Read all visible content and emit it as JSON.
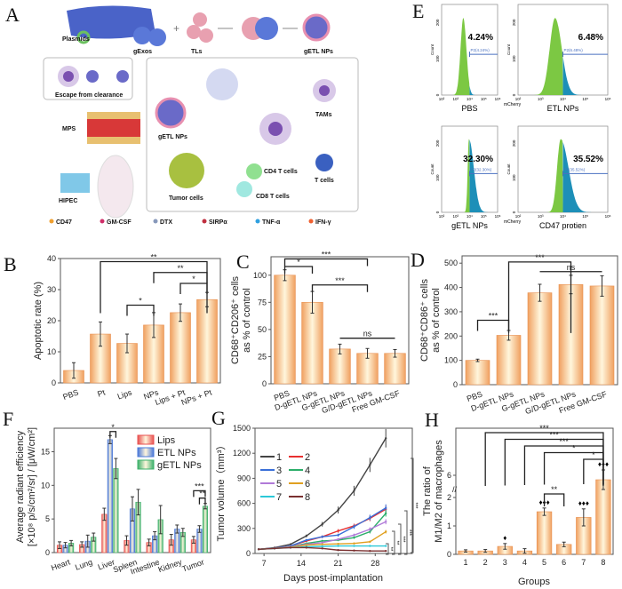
{
  "panel_labels": {
    "A": "A",
    "B": "B",
    "C": "C",
    "D": "D",
    "E": "E",
    "F": "F",
    "G": "G",
    "H": "H"
  },
  "schematic": {
    "labels": {
      "plasmids": "Plasmids",
      "gexos": "gExos",
      "tls": "TLs",
      "getl_top": "gETL NPs",
      "escape": "Escape from clearance",
      "mps": "MPS",
      "hipec": "HIPEC",
      "getl_mid": "gETL NPs",
      "tams": "TAMs",
      "tumor": "Tumor cells",
      "cd4": "CD4 T cells",
      "cd8": "CD8 T cells",
      "tcells": "T cells"
    },
    "legend": [
      {
        "label": "CD47",
        "color": "#f0a030"
      },
      {
        "label": "GM-CSF",
        "color": "#d0306a"
      },
      {
        "label": "DTX",
        "color": "#8899bb"
      },
      {
        "label": "SIRPα",
        "color": "#c03040"
      },
      {
        "label": "TNF-α",
        "color": "#30a0e0"
      },
      {
        "label": "IFN-γ",
        "color": "#f06030"
      }
    ]
  },
  "colors": {
    "bar_edge": "#f0a060",
    "bar_center": "#fff6dc",
    "hist_green": "#7cc843",
    "hist_blue": "#1d8fb8",
    "gate": "#4a70c0"
  },
  "chart_data": [
    {
      "id": "B",
      "type": "bar",
      "ylabel": "Apoptotic rate (%)",
      "ylim": [
        0,
        40
      ],
      "yticks": [
        0,
        10,
        20,
        30,
        40
      ],
      "categories": [
        "PBS",
        "Pt",
        "Lips",
        "NPs",
        "Lips + Pt",
        "NPs + Pt"
      ],
      "values": [
        4,
        15.7,
        12.7,
        18.6,
        22.6,
        26.8
      ],
      "errors": [
        2.5,
        3.9,
        3,
        4,
        2.8,
        2.3
      ],
      "annotations": [
        {
          "a": 1,
          "b": 5,
          "y": 39,
          "label": "**"
        },
        {
          "a": 3,
          "b": 5,
          "y": 35.5,
          "label": "**"
        },
        {
          "a": 4,
          "b": 5,
          "y": 32,
          "label": "*"
        },
        {
          "a": 2,
          "b": 3,
          "y": 25,
          "label": "*"
        }
      ]
    },
    {
      "id": "C",
      "type": "bar",
      "ylabel": [
        "CD68⁺CD206⁺ cells",
        "as % of control"
      ],
      "ylim": [
        0,
        117
      ],
      "yticks": [
        0,
        25,
        50,
        75,
        100
      ],
      "categories": [
        "PBS",
        "D-gETL NPs",
        "G-gETL NPs",
        "G/D-gETL NPs",
        "Free GM-CSF"
      ],
      "values": [
        100,
        75,
        32,
        28,
        28
      ],
      "errors": [
        5,
        10,
        4.5,
        4.5,
        3.5
      ],
      "annotations": [
        {
          "a": 0,
          "b": 3,
          "y": 115,
          "label": "***"
        },
        {
          "a": 0,
          "b": 1,
          "y": 108,
          "label": "*"
        },
        {
          "a": 1,
          "b": 3,
          "y": 91,
          "label": "***"
        },
        {
          "a": 2,
          "b": 4,
          "y": 42,
          "label": "ns",
          "flat": true
        }
      ]
    },
    {
      "id": "D",
      "type": "bar",
      "ylabel": [
        "CD68⁺CD86⁺ cells",
        "as % of control"
      ],
      "ylim": [
        0,
        530
      ],
      "yticks": [
        0,
        100,
        200,
        300,
        400,
        500
      ],
      "categories": [
        "PBS",
        "D-gETL NPs",
        "G-gETL NPs",
        "G/D-gETL NPs",
        "Free GM-CSF"
      ],
      "values": [
        100,
        203,
        378,
        412,
        406
      ],
      "errors": [
        5,
        20,
        35,
        38,
        42
      ],
      "annotations": [
        {
          "a": 1,
          "b": 3,
          "y": 505,
          "label": "***"
        },
        {
          "a": 2,
          "b": 4,
          "y": 465,
          "label": "ns",
          "flat": true
        },
        {
          "a": 0,
          "b": 1,
          "y": 265,
          "label": "***"
        }
      ]
    },
    {
      "id": "F",
      "type": "bar",
      "ylabel": [
        "Average radiant efficiency",
        "[×10⁸ p/s/cm²/sr] / [μW/cm²]"
      ],
      "ylim": [
        0,
        18.5
      ],
      "yticks": [
        0,
        5,
        10,
        15
      ],
      "categories": [
        "Heart",
        "Lung",
        "Liver",
        "Spleen",
        "Intestine",
        "Kidney",
        "Tumor"
      ],
      "legend_position": "top-right",
      "series": [
        {
          "name": "Lips",
          "color": "#e85050",
          "values": [
            1.1,
            1.2,
            5.7,
            1.8,
            1.5,
            1.9,
            1.9
          ],
          "errors": [
            0.5,
            0.4,
            0.9,
            0.7,
            0.5,
            0.8,
            0.5
          ]
        },
        {
          "name": "ETL NPs",
          "color": "#4a78d8",
          "values": [
            1.1,
            1.7,
            16.8,
            6.5,
            2.5,
            3.5,
            3.5
          ],
          "errors": [
            0.4,
            0.9,
            0.6,
            1.8,
            0.6,
            0.6,
            0.5
          ]
        },
        {
          "name": "gETL NPs",
          "color": "#3cb06a",
          "values": [
            1.4,
            2.3,
            12.5,
            7.5,
            4.9,
            3.0,
            6.9
          ],
          "errors": [
            0.4,
            0.6,
            1.5,
            1.9,
            2.1,
            0.6,
            0.4
          ]
        }
      ],
      "annotations": [
        {
          "a": [
            2,
            1
          ],
          "b": [
            2,
            2
          ],
          "y": 18,
          "label": "*"
        },
        {
          "a": [
            6,
            0
          ],
          "b": [
            6,
            2
          ],
          "y": 9.2,
          "label": "***"
        },
        {
          "a": [
            6,
            1
          ],
          "b": [
            6,
            2
          ],
          "y": 8.1,
          "label": "**"
        }
      ]
    },
    {
      "id": "G",
      "type": "line",
      "xlabel": "Days post-implantation",
      "ylabel": "Tumor volume（mm³）",
      "xlim": [
        5.3,
        35
      ],
      "xticks": [
        7,
        14,
        21,
        28
      ],
      "ylim": [
        0,
        1500
      ],
      "yticks": [
        0,
        300,
        600,
        900,
        1200,
        1500
      ],
      "x": [
        6,
        9,
        12,
        15,
        18,
        21,
        24,
        27,
        30
      ],
      "legend_position": "left",
      "series": [
        {
          "name": "1",
          "color": "#444444",
          "values": [
            50,
            70,
            110,
            210,
            350,
            520,
            750,
            1060,
            1380
          ]
        },
        {
          "name": "2",
          "color": "#e83030",
          "values": [
            50,
            65,
            90,
            150,
            200,
            270,
            330,
            420,
            530
          ]
        },
        {
          "name": "3",
          "color": "#3a6fd8",
          "values": [
            50,
            65,
            90,
            160,
            200,
            220,
            320,
            430,
            545
          ]
        },
        {
          "name": "4",
          "color": "#2cae6a",
          "values": [
            50,
            60,
            80,
            120,
            150,
            160,
            190,
            260,
            480
          ]
        },
        {
          "name": "5",
          "color": "#b07ad8",
          "values": [
            50,
            60,
            80,
            110,
            130,
            170,
            220,
            290,
            380
          ]
        },
        {
          "name": "6",
          "color": "#e0a020",
          "values": [
            50,
            60,
            75,
            100,
            110,
            115,
            120,
            140,
            260
          ]
        },
        {
          "name": "7",
          "color": "#2cc8d8",
          "values": [
            50,
            60,
            70,
            80,
            85,
            90,
            90,
            90,
            90
          ]
        },
        {
          "name": "8",
          "color": "#7a3030",
          "values": [
            50,
            60,
            70,
            70,
            60,
            40,
            35,
            30,
            30
          ]
        }
      ],
      "annotations": [
        "**",
        "**",
        "***",
        "***",
        "***"
      ]
    },
    {
      "id": "H",
      "type": "bar",
      "xlabel": "Groups",
      "ylabel": [
        "The ratio of",
        "M1/M2 of macrophages"
      ],
      "yticks": [
        0,
        1,
        2,
        6
      ],
      "yaxis_break": [
        2,
        5
      ],
      "categories": [
        "1",
        "2",
        "3",
        "4",
        "5",
        "6",
        "7",
        "8"
      ],
      "values": [
        0.12,
        0.12,
        0.28,
        0.12,
        1.5,
        0.35,
        1.3,
        5.5
      ],
      "errors": [
        0.04,
        0.05,
        0.1,
        0.08,
        0.13,
        0.08,
        0.3,
        1.1
      ],
      "markers": [
        "",
        "",
        "♦",
        "",
        "♦♦♦",
        "",
        "♦♦♦",
        "♦♦♦"
      ],
      "annotations": [
        {
          "a": 1,
          "b": 7,
          "y": 1,
          "label": "***"
        },
        {
          "a": 2,
          "b": 7,
          "y": 2,
          "label": "***"
        },
        {
          "a": 3,
          "b": 7,
          "y": 3,
          "label": "***"
        },
        {
          "a": 4,
          "b": 7,
          "y": 4,
          "label": "*"
        },
        {
          "a": 6,
          "b": 7,
          "y": 5,
          "label": "*"
        },
        {
          "a": 4,
          "b": 5,
          "y": 0,
          "label": "**",
          "low": true
        }
      ]
    },
    {
      "id": "E",
      "type": "histogram",
      "ylabel": "Count",
      "xlabel": "mCherry",
      "xticks": [
        "10²",
        "10³",
        "10⁴",
        "10⁵",
        "10⁶"
      ],
      "yticks": [
        "0",
        "100",
        "200"
      ],
      "panels": [
        {
          "name": "PBS",
          "percent": "4.24%",
          "gate": "P2(4.24%)"
        },
        {
          "name": "ETL NPs",
          "percent": "6.48%",
          "gate": "P2(6.48%)"
        },
        {
          "name": "gETL NPs",
          "percent": "32.30%",
          "gate": "P2(32.30%)"
        },
        {
          "name": "CD47 protien",
          "percent": "35.52%",
          "gate": "P2(35.52%)"
        }
      ]
    }
  ]
}
